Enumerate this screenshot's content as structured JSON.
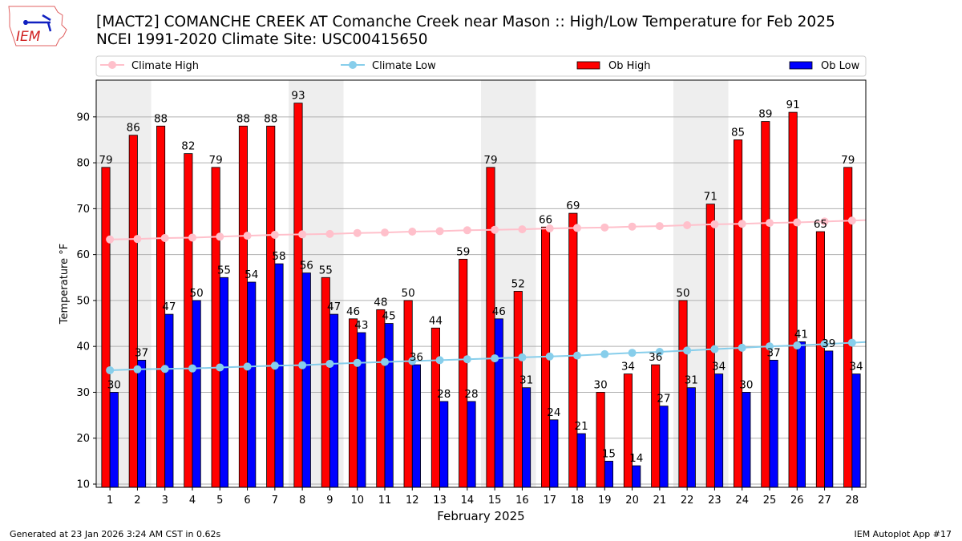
{
  "header": {
    "logo_text": "IEM",
    "title_line1": "[MACT2] COMANCHE CREEK  AT Comanche Creek near Mason :: High/Low Temperature for Feb 2025",
    "title_line2": "NCEI 1991-2020 Climate Site: USC00415650"
  },
  "footer": {
    "generated": "Generated at 23 Jan 2026 3:24 AM CST in 0.62s",
    "app": "IEM Autoplot App #17"
  },
  "chart_data": {
    "type": "bar",
    "xlabel": "February 2025",
    "ylabel": "Temperature °F",
    "ylim": [
      9.3,
      98
    ],
    "xlim": [
      0.5,
      28.5
    ],
    "yticks": [
      10,
      20,
      30,
      40,
      50,
      60,
      70,
      80,
      90
    ],
    "grid": true,
    "legend_placement": "top",
    "weekend_shading": [
      [
        1,
        2
      ],
      [
        8,
        9
      ],
      [
        15,
        16
      ],
      [
        22,
        23
      ]
    ],
    "days": [
      1,
      2,
      3,
      4,
      5,
      6,
      7,
      8,
      9,
      10,
      11,
      12,
      13,
      14,
      15,
      16,
      17,
      18,
      19,
      20,
      21,
      22,
      23,
      24,
      25,
      26,
      27,
      28
    ],
    "series": [
      {
        "name": "Climate High",
        "kind": "line",
        "color": "#ffc0cb",
        "values": [
          63.3,
          63.4,
          63.6,
          63.7,
          63.9,
          64.1,
          64.3,
          64.4,
          64.5,
          64.7,
          64.8,
          65.0,
          65.1,
          65.3,
          65.4,
          65.5,
          65.7,
          65.8,
          65.9,
          66.1,
          66.2,
          66.4,
          66.6,
          66.7,
          66.9,
          67.0,
          67.2,
          67.4
        ]
      },
      {
        "name": "Climate Low",
        "kind": "line",
        "color": "#87ceeb",
        "values": [
          34.8,
          35.0,
          35.1,
          35.2,
          35.4,
          35.6,
          35.8,
          35.9,
          36.2,
          36.4,
          36.6,
          36.8,
          37.0,
          37.2,
          37.4,
          37.6,
          37.8,
          38.0,
          38.3,
          38.6,
          38.8,
          39.1,
          39.4,
          39.7,
          40.0,
          40.2,
          40.5,
          40.8
        ]
      },
      {
        "name": "Ob High",
        "kind": "bar",
        "color": "#ff0000",
        "values": [
          79,
          86,
          88,
          82,
          79,
          88,
          88,
          93,
          55,
          46,
          48,
          50,
          44,
          59,
          79,
          52,
          66,
          69,
          30,
          34,
          36,
          50,
          71,
          85,
          89,
          91,
          65,
          79
        ]
      },
      {
        "name": "Ob Low",
        "kind": "bar",
        "color": "#0000ff",
        "values": [
          30,
          37,
          47,
          50,
          55,
          54,
          58,
          56,
          47,
          43,
          45,
          36,
          28,
          28,
          46,
          31,
          24,
          21,
          15,
          14,
          27,
          31,
          34,
          30,
          37,
          41,
          39,
          34
        ]
      }
    ]
  }
}
